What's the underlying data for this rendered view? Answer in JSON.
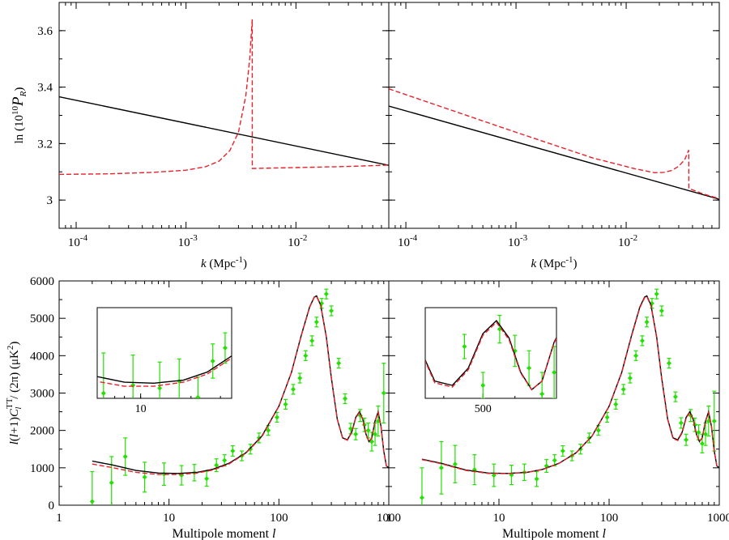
{
  "chart_data": [
    {
      "type": "line",
      "panel": "top-left",
      "x_scale": "log",
      "xlim": [
        7e-05,
        0.07
      ],
      "ylim": [
        2.9,
        3.7
      ],
      "xlabel_var": "k",
      "xlabel_unit": "(Mpc",
      "xlabel_exp": "-1",
      "xlabel_close": ")",
      "ylabel": {
        "prefix": "ln (10",
        "exp": "10",
        "sym": "P",
        "sub": "R",
        "close": ")"
      },
      "x_ticks": [
        {
          "value": 0.0001,
          "base": "10",
          "exp": "-4"
        },
        {
          "value": 0.001,
          "base": "10",
          "exp": "-3"
        },
        {
          "value": 0.01,
          "base": "10",
          "exp": "-2"
        }
      ],
      "y_ticks": [
        {
          "value": 3,
          "label": "3"
        },
        {
          "value": 3.2,
          "label": "3.2"
        },
        {
          "value": 3.4,
          "label": "3.4"
        },
        {
          "value": 3.6,
          "label": "3.6"
        }
      ],
      "series": [
        {
          "name": "power-law",
          "color": "#000000",
          "style": "solid",
          "x": [
            7e-05,
            0.07
          ],
          "y": [
            3.366,
            3.123
          ]
        },
        {
          "name": "feature",
          "color": "#e8212a",
          "style": "dashed",
          "x": [
            7e-05,
            0.0002,
            0.0005,
            0.001,
            0.0015,
            0.002,
            0.0025,
            0.003,
            0.0035,
            0.0038,
            0.004,
            0.00401,
            0.01,
            0.03,
            0.07
          ],
          "y": [
            3.091,
            3.093,
            3.098,
            3.106,
            3.118,
            3.138,
            3.175,
            3.24,
            3.37,
            3.5,
            3.64,
            3.112,
            3.115,
            3.119,
            3.124
          ]
        }
      ]
    },
    {
      "type": "line",
      "panel": "top-right",
      "x_scale": "log",
      "xlim": [
        7e-05,
        0.07
      ],
      "ylim": [
        2.9,
        3.7
      ],
      "xlabel_var": "k",
      "xlabel_unit": "(Mpc",
      "xlabel_exp": "-1",
      "xlabel_close": ")",
      "x_ticks": [
        {
          "value": 0.0001,
          "base": "10",
          "exp": "-4"
        },
        {
          "value": 0.001,
          "base": "10",
          "exp": "-3"
        },
        {
          "value": 0.01,
          "base": "10",
          "exp": "-2"
        }
      ],
      "series": [
        {
          "name": "power-law",
          "color": "#000000",
          "style": "solid",
          "x": [
            7e-05,
            0.07
          ],
          "y": [
            3.333,
            3.003
          ]
        },
        {
          "name": "feature",
          "color": "#e8212a",
          "style": "dashed",
          "x": [
            7e-05,
            0.001,
            0.005,
            0.012,
            0.018,
            0.022,
            0.026,
            0.03,
            0.034,
            0.037,
            0.03701,
            0.05,
            0.07
          ],
          "y": [
            3.394,
            3.24,
            3.149,
            3.111,
            3.097,
            3.098,
            3.105,
            3.12,
            3.143,
            3.177,
            3.041,
            3.022,
            3.005
          ]
        }
      ]
    },
    {
      "type": "line",
      "panel": "bottom-left",
      "x_scale": "log",
      "xlim": [
        1,
        1000
      ],
      "ylim": [
        0,
        6000
      ],
      "xlabel": "Multipole moment",
      "xlabel_var": "l",
      "ylabel": {
        "a": "l",
        "b": "(",
        "c": "l",
        "d": "+1)",
        "e": "C",
        "sup": "TT",
        "sub": "l",
        "f": " / (2π) (μK",
        "exp": "2",
        "g": ")"
      },
      "x_ticks": [
        {
          "value": 1,
          "label": "1"
        },
        {
          "value": 10,
          "label": "10"
        },
        {
          "value": 100,
          "label": "100"
        },
        {
          "value": 1000,
          "label": "1000"
        }
      ],
      "y_ticks": [
        {
          "value": 0,
          "label": "0"
        },
        {
          "value": 1000,
          "label": "1000"
        },
        {
          "value": 2000,
          "label": "2000"
        },
        {
          "value": 3000,
          "label": "3000"
        },
        {
          "value": 4000,
          "label": "4000"
        },
        {
          "value": 5000,
          "label": "5000"
        },
        {
          "value": 6000,
          "label": "6000"
        }
      ],
      "series": [
        {
          "name": "power-law",
          "color": "#000000",
          "style": "solid",
          "x": [
            2,
            3,
            5,
            8,
            12,
            18,
            25,
            35,
            50,
            70,
            100,
            130,
            160,
            190,
            210,
            220,
            240,
            270,
            300,
            340,
            380,
            420,
            460,
            500,
            540,
            580,
            620,
            660,
            700,
            750,
            800,
            850,
            900,
            950,
            1000
          ],
          "y": [
            1180,
            1080,
            930,
            860,
            850,
            880,
            960,
            1120,
            1400,
            1850,
            2650,
            3550,
            4550,
            5300,
            5570,
            5600,
            5350,
            4500,
            3400,
            2300,
            1800,
            1750,
            1950,
            2350,
            2500,
            2300,
            1900,
            1700,
            1800,
            2250,
            2500,
            2100,
            1450,
            1050,
            1000
          ]
        },
        {
          "name": "feature",
          "color": "#e8212a",
          "style": "dashed",
          "x": [
            2,
            3,
            5,
            8,
            12,
            18,
            25,
            35,
            50,
            70,
            100,
            130,
            160,
            190,
            210,
            220,
            240,
            270,
            300,
            340,
            380,
            420,
            460,
            500,
            540,
            580,
            620,
            660,
            700,
            750,
            800,
            850,
            900,
            950,
            1000
          ],
          "y": [
            1100,
            1010,
            880,
            820,
            820,
            860,
            940,
            1100,
            1390,
            1830,
            2640,
            3550,
            4540,
            5290,
            5560,
            5590,
            5340,
            4490,
            3400,
            2300,
            1790,
            1740,
            1940,
            2330,
            2480,
            2290,
            1900,
            1700,
            1800,
            2240,
            2480,
            2090,
            1450,
            1050,
            1000
          ]
        }
      ],
      "data_points": {
        "color": "#22e000",
        "x": [
          2,
          3,
          4,
          6,
          9,
          13,
          17,
          22,
          27,
          32,
          38,
          46,
          55,
          66,
          80,
          96,
          115,
          135,
          155,
          175,
          200,
          220,
          245,
          270,
          300,
          350,
          400,
          450,
          500,
          550,
          600,
          650,
          700,
          750,
          800,
          900
        ],
        "y": [
          100,
          600,
          1300,
          750,
          830,
          800,
          870,
          710,
          1070,
          1200,
          1450,
          1320,
          1500,
          1800,
          2000,
          2350,
          2700,
          3100,
          3400,
          4000,
          4400,
          4900,
          5400,
          5650,
          5200,
          3800,
          2850,
          2050,
          1900,
          2400,
          2150,
          2000,
          1700,
          1900,
          2250,
          3000
        ],
        "err": [
          800,
          700,
          500,
          400,
          300,
          260,
          220,
          200,
          170,
          150,
          140,
          130,
          130,
          130,
          130,
          130,
          130,
          130,
          130,
          130,
          130,
          130,
          130,
          130,
          130,
          130,
          130,
          140,
          150,
          160,
          180,
          200,
          250,
          300,
          400,
          800
        ]
      },
      "inset": {
        "x_ticks": [
          {
            "value": 10,
            "label": "10"
          }
        ],
        "xlim": [
          5.5,
          35
        ],
        "ylim": [
          700,
          1600
        ]
      }
    },
    {
      "type": "line",
      "panel": "bottom-right",
      "x_scale": "log",
      "xlim": [
        1,
        1000
      ],
      "ylim": [
        0,
        6000
      ],
      "xlabel": "Multipole moment",
      "xlabel_var": "l",
      "x_ticks": [
        {
          "value": 1,
          "label": "1"
        },
        {
          "value": 10,
          "label": "10"
        },
        {
          "value": 100,
          "label": "100"
        },
        {
          "value": 1000,
          "label": "1000"
        }
      ],
      "series": [
        {
          "name": "power-law",
          "color": "#000000",
          "style": "solid",
          "x": [
            2,
            3,
            5,
            8,
            12,
            18,
            25,
            35,
            50,
            70,
            100,
            130,
            160,
            190,
            210,
            220,
            240,
            270,
            300,
            340,
            380,
            420,
            460,
            500,
            540,
            580,
            620,
            660,
            700,
            750,
            800,
            850,
            900,
            950,
            1000
          ],
          "y": [
            1230,
            1120,
            940,
            860,
            850,
            880,
            960,
            1120,
            1400,
            1850,
            2650,
            3550,
            4550,
            5300,
            5570,
            5600,
            5350,
            4500,
            3400,
            2300,
            1800,
            1750,
            1950,
            2350,
            2500,
            2300,
            1900,
            1700,
            1800,
            2250,
            2500,
            2100,
            1450,
            1050,
            1000
          ]
        },
        {
          "name": "feature",
          "color": "#e8212a",
          "style": "dashed",
          "x": [
            2,
            3,
            5,
            8,
            12,
            18,
            25,
            35,
            50,
            70,
            100,
            130,
            160,
            190,
            210,
            220,
            240,
            270,
            300,
            340,
            380,
            420,
            460,
            500,
            540,
            580,
            620,
            660,
            700,
            750,
            800,
            850,
            900,
            950,
            1000
          ],
          "y": [
            1220,
            1110,
            930,
            850,
            845,
            875,
            955,
            1115,
            1395,
            1845,
            2640,
            3540,
            4530,
            5280,
            5550,
            5580,
            5330,
            4480,
            3380,
            2290,
            1780,
            1730,
            1930,
            2330,
            2480,
            2280,
            1890,
            1700,
            1800,
            2240,
            2480,
            2090,
            1450,
            1050,
            1000
          ]
        }
      ],
      "data_points": {
        "color": "#22e000",
        "x": [
          2,
          3,
          4,
          6,
          9,
          13,
          17,
          22,
          27,
          32,
          38,
          46,
          55,
          66,
          80,
          96,
          115,
          135,
          155,
          175,
          200,
          220,
          245,
          270,
          300,
          350,
          400,
          450,
          500,
          550,
          600,
          650,
          700,
          750,
          800,
          900
        ],
        "y": [
          200,
          1000,
          1100,
          950,
          800,
          810,
          880,
          700,
          1050,
          1200,
          1450,
          1320,
          1500,
          1800,
          2000,
          2350,
          2700,
          3100,
          3400,
          4000,
          4400,
          4900,
          5400,
          5650,
          5200,
          3800,
          2900,
          2200,
          1750,
          2400,
          2150,
          1950,
          1650,
          1900,
          2250,
          2250
        ],
        "err": [
          800,
          700,
          500,
          400,
          300,
          260,
          220,
          200,
          170,
          150,
          140,
          130,
          130,
          130,
          130,
          130,
          130,
          130,
          130,
          130,
          130,
          130,
          130,
          130,
          130,
          130,
          130,
          140,
          150,
          160,
          180,
          200,
          250,
          300,
          400,
          800
        ]
      },
      "inset": {
        "x_ticks": [
          {
            "value": 500,
            "label": "500"
          }
        ],
        "xlim": [
          360,
          760
        ],
        "ylim": [
          1600,
          2650
        ]
      }
    }
  ]
}
